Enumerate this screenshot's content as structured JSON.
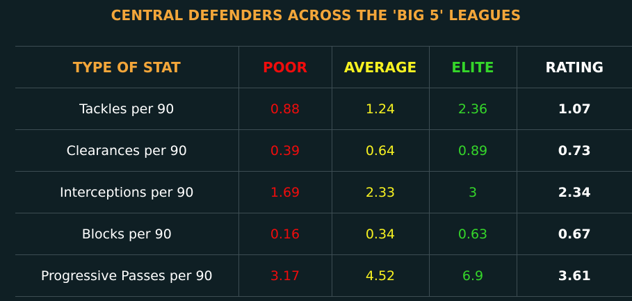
{
  "title": "CENTRAL DEFENDERS ACROSS THE 'BIG 5' LEAGUES",
  "colors": {
    "background": "#0f1f24",
    "title": "#f3a63a",
    "type_header": "#f3a63a",
    "poor": "#f00c0c",
    "average": "#f7f221",
    "elite": "#35d62a",
    "rating": "#ffffff",
    "stat_label": "#ffffff",
    "grid": "#3d4d53"
  },
  "columns": {
    "type": "TYPE OF STAT",
    "poor": "POOR",
    "average": "AVERAGE",
    "elite": "ELITE",
    "rating": "RATING"
  },
  "rows": [
    {
      "stat": "Tackles per 90",
      "poor": "0.88",
      "average": "1.24",
      "elite": "2.36",
      "rating": "1.07"
    },
    {
      "stat": "Clearances per 90",
      "poor": "0.39",
      "average": "0.64",
      "elite": "0.89",
      "rating": "0.73"
    },
    {
      "stat": "Interceptions per 90",
      "poor": "1.69",
      "average": "2.33",
      "elite": "3",
      "rating": "2.34"
    },
    {
      "stat": "Blocks per 90",
      "poor": "0.16",
      "average": "0.34",
      "elite": "0.63",
      "rating": "0.67"
    },
    {
      "stat": "Progressive Passes per 90",
      "poor": "3.17",
      "average": "4.52",
      "elite": "6.9",
      "rating": "3.61"
    }
  ]
}
